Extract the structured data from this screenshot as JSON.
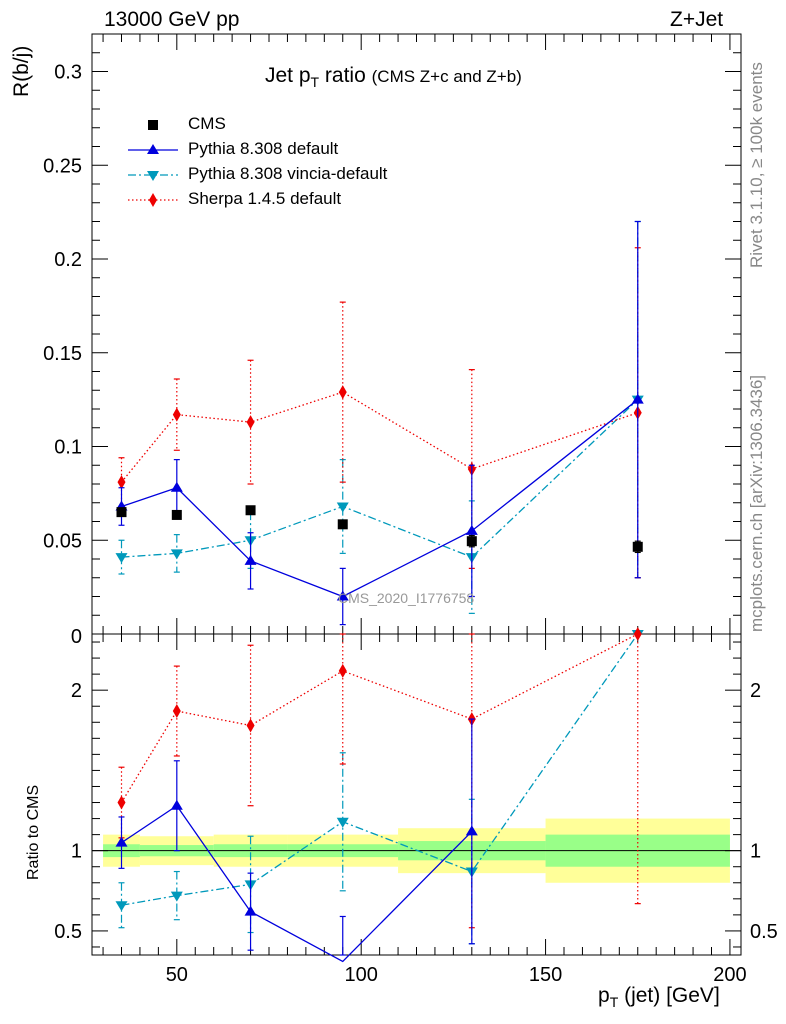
{
  "header": {
    "left_label": "13000 GeV pp",
    "right_label": "Z+Jet"
  },
  "side_labels": {
    "rivet": "Rivet 3.1.10, ≥ 100k events",
    "mcplots": "mcplots.cern.ch [arXiv:1306.3436]"
  },
  "chart_data": {
    "type": "line",
    "title": "Jet p",
    "title_sub": "T",
    "title_rest": " ratio",
    "title_note": "(CMS  Z+c and Z+b)",
    "watermark": "CMS_2020_I1776758",
    "ylabel": "R(b/j)",
    "ratio_ylabel": "Ratio to CMS",
    "xlabel_main": "p",
    "xlabel_sub": "T",
    "xlabel_rest": " (jet) [GeV]",
    "xlim": [
      27,
      203
    ],
    "ylim": [
      0,
      0.32
    ],
    "ratio_ylim": [
      0.35,
      2.35
    ],
    "x_ticks": [
      50,
      100,
      150,
      200
    ],
    "x_tick_labels": [
      "50",
      "100",
      "150",
      "200"
    ],
    "y_ticks": [
      0.05,
      0.1,
      0.15,
      0.2,
      0.25,
      0.3
    ],
    "y_tick_labels": [
      "0.05",
      "0.1",
      "0.15",
      "0.2",
      "0.25",
      "0.3"
    ],
    "y_bottom_label": "0",
    "ratio_ticks": [
      0.5,
      1,
      2
    ],
    "ratio_tick_labels": [
      "0.5",
      "1",
      "2"
    ],
    "bin_edges": [
      30,
      40,
      60,
      80,
      110,
      150,
      200
    ],
    "band_inner": [
      0.04,
      0.035,
      0.04,
      0.04,
      0.06,
      0.1
    ],
    "band_outer": [
      0.1,
      0.09,
      0.1,
      0.1,
      0.14,
      0.2
    ],
    "legend": [
      {
        "name": "CMS",
        "key": "cms"
      },
      {
        "name": "Pythia 8.308 default",
        "key": "py"
      },
      {
        "name": "Pythia 8.308 vincia-default",
        "key": "vin"
      },
      {
        "name": "Sherpa 1.4.5 default",
        "key": "sh"
      }
    ],
    "series": [
      {
        "key": "cms",
        "name": "CMS",
        "color": "#000000",
        "marker": "square",
        "line": "none",
        "x": [
          35,
          50,
          70,
          95,
          130,
          175
        ],
        "y": [
          0.065,
          0.0635,
          0.066,
          0.0585,
          0.0495,
          0.0465
        ],
        "err": [
          0.002,
          0.002,
          0.002,
          0.002,
          0.003,
          0.003
        ]
      },
      {
        "key": "py",
        "name": "Pythia 8.308 default",
        "color": "#0000dd",
        "marker": "triangle-up",
        "line": "solid",
        "x": [
          35,
          50,
          70,
          95,
          130,
          175
        ],
        "y": [
          0.068,
          0.078,
          0.039,
          0.02,
          0.055,
          0.125
        ],
        "err": [
          0.01,
          0.015,
          0.015,
          0.015,
          0.035,
          0.095
        ],
        "ratio": [
          1.05,
          1.28,
          0.62,
          0.31,
          1.12,
          null
        ],
        "ratio_err": [
          0.16,
          0.28,
          0.24,
          0.28,
          0.7,
          null
        ]
      },
      {
        "key": "vin",
        "name": "Pythia 8.308 vincia-default",
        "color": "#0099bb",
        "marker": "triangle-down",
        "line": "dashdot",
        "x": [
          35,
          50,
          70,
          95,
          130,
          175
        ],
        "y": [
          0.041,
          0.043,
          0.05,
          0.068,
          0.041,
          0.125
        ],
        "err": [
          0.009,
          0.01,
          0.015,
          0.025,
          0.03,
          0.095
        ],
        "ratio": [
          0.66,
          0.72,
          0.79,
          1.18,
          0.87,
          2.35
        ],
        "ratio_err": [
          0.14,
          0.15,
          0.3,
          0.43,
          0.45,
          null
        ]
      },
      {
        "key": "sh",
        "name": "Sherpa 1.4.5 default",
        "color": "#ee0000",
        "marker": "diamond",
        "line": "dotted",
        "x": [
          35,
          50,
          70,
          95,
          130,
          175
        ],
        "y": [
          0.081,
          0.117,
          0.113,
          0.129,
          0.088,
          0.118
        ],
        "err": [
          0.013,
          0.019,
          0.033,
          0.048,
          0.053,
          0.088
        ],
        "ratio": [
          1.3,
          1.87,
          1.78,
          2.12,
          1.82,
          2.35
        ],
        "ratio_err": [
          0.22,
          0.28,
          0.5,
          0.58,
          1.3,
          null
        ]
      }
    ]
  }
}
